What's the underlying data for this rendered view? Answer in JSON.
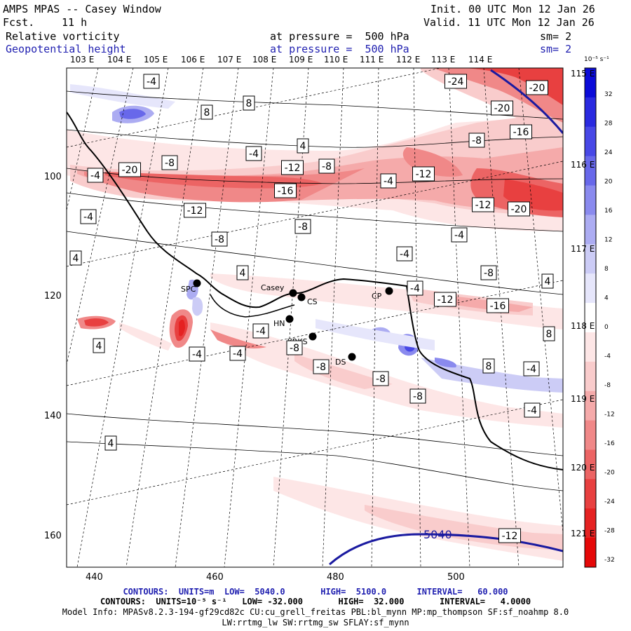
{
  "header": {
    "title": "AMPS MPAS -- Casey Window",
    "fcst_label": "Fcst.",
    "fcst_value": "11 h",
    "init": "Init. 00 UTC Mon 12 Jan 26",
    "valid": "Valid. 11 UTC Mon 12 Jan 26",
    "field1_name": "Relative vorticity",
    "field1_pressure": "at pressure =  500 hPa",
    "field1_sm": "sm= 2",
    "field2_name": "Geopotential height",
    "field2_pressure": "at pressure =  500 hPa",
    "field2_sm": "sm= 2"
  },
  "map": {
    "lon_labels": [
      "103 E",
      "104 E",
      "105 E",
      "106 E",
      "107 E",
      "108 E",
      "109 E",
      "110 E",
      "111 E",
      "112 E",
      "113 E",
      "114 E"
    ],
    "right_lon_labels": [
      "115 E",
      "116 E",
      "117 E",
      "118 E",
      "119 E",
      "120 E",
      "121 E"
    ],
    "y_ticks": [
      "100",
      "120",
      "140",
      "160"
    ],
    "x_ticks": [
      "440",
      "460",
      "480",
      "500"
    ],
    "stations": [
      {
        "name": "SPC"
      },
      {
        "name": "Casey"
      },
      {
        "name": "CS"
      },
      {
        "name": "CP"
      },
      {
        "name": "HN"
      },
      {
        "name": "YRKS"
      },
      {
        "name": "DS"
      }
    ],
    "height_contour_label": "5040",
    "contour_labels": [
      "-4",
      "8",
      "8",
      "-24",
      "-20",
      "-20",
      "-16",
      "-8",
      "4",
      "-4",
      "-8",
      "-20",
      "-12",
      "-8",
      "-12",
      "-4",
      "-16",
      "-4",
      "-12",
      "-20",
      "-12",
      "-8",
      "-4",
      "-8",
      "4",
      "4",
      "-4",
      "-8",
      "-4",
      "-12",
      "-16",
      "-4",
      "4",
      "-8",
      "-4",
      "8",
      "8",
      "-4",
      "-8",
      "-8",
      "4",
      "-4",
      "-4",
      "4",
      "-4",
      "-8",
      "-12"
    ]
  },
  "colorbar": {
    "units": "10⁻⁵ s⁻¹",
    "labels": [
      "32",
      "28",
      "24",
      "20",
      "16",
      "12",
      "8",
      "4",
      "0",
      "-4",
      "-8",
      "-12",
      "-16",
      "-20",
      "-24",
      "-28",
      "-32"
    ],
    "colors": [
      "#0b0bd8",
      "#2a2ae0",
      "#4848e6",
      "#6868ea",
      "#8a8aee",
      "#acacf2",
      "#ccccf6",
      "#e6e6fb",
      "#ffffff",
      "#fde6e6",
      "#f9cccc",
      "#f5aaaa",
      "#f08888",
      "#ec6464",
      "#e84040",
      "#e52222",
      "#e50808"
    ]
  },
  "footer": {
    "line1": "CONTOURS:  UNITS=m  LOW=  5040.0       HIGH=  5100.0      INTERVAL=   60.000",
    "line2": "CONTOURS:  UNITS=10⁻⁵ s⁻¹   LOW= -32.000       HIGH=  32.000       INTERVAL=   4.0000",
    "line3": "Model Info: MPASv8.2.3-194-gf29cd82c CU:cu_grell_freitas PBL:bl_mynn MP:mp_thompson SF:sf_noahmp 8.0",
    "line4": "LW:rrtmg_lw SW:rrtmg_sw SFLAY:sf_mynn"
  }
}
